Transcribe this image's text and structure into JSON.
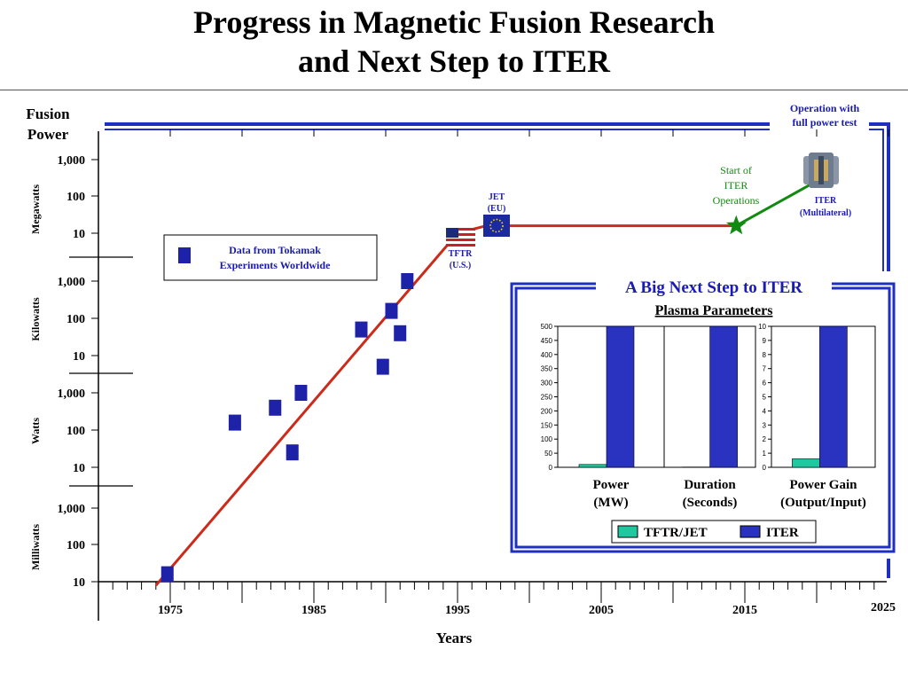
{
  "title_line1": "Progress in Magnetic Fusion Research",
  "title_line2": "and Next Step to ITER",
  "colors": {
    "frame_blue": "#1f2fbf",
    "marker_blue": "#1e22a8",
    "trend_red": "#cc2a1a",
    "iter_green": "#108a10",
    "bar_teal": "#20c8a0",
    "label_blue": "#1a1ab4"
  },
  "chart_data": [
    {
      "type": "scatter",
      "ylabel_line1": "Fusion",
      "ylabel_line2": "Power",
      "xlabel": "Years",
      "x_ticks": [
        "1975",
        "1985",
        "1995",
        "2005",
        "2015",
        "2025"
      ],
      "xlim": [
        1970,
        2025
      ],
      "scale": "log, stacked decades",
      "units": [
        {
          "name": "Milliwatts",
          "ticks": [
            "10",
            "100",
            "1,000"
          ]
        },
        {
          "name": "Watts",
          "ticks": [
            "10",
            "100",
            "1,000"
          ]
        },
        {
          "name": "Kilowatts",
          "ticks": [
            "10",
            "100",
            "1,000"
          ]
        },
        {
          "name": "Megawatts",
          "ticks": [
            "10",
            "100",
            "1,000"
          ]
        }
      ],
      "points_log10_watts": [
        {
          "year": 1974.8,
          "log10_watts": -1.8
        },
        {
          "year": 1979.5,
          "log10_watts": 2.2
        },
        {
          "year": 1982.3,
          "log10_watts": 2.6
        },
        {
          "year": 1983.5,
          "log10_watts": 1.4
        },
        {
          "year": 1984.1,
          "log10_watts": 3.0
        },
        {
          "year": 1988.3,
          "log10_watts": 4.7
        },
        {
          "year": 1989.8,
          "log10_watts": 3.7
        },
        {
          "year": 1990.4,
          "log10_watts": 5.2
        },
        {
          "year": 1991.0,
          "log10_watts": 4.6
        },
        {
          "year": 1991.5,
          "log10_watts": 6.0
        }
      ],
      "trend_line_log10_watts": [
        {
          "year": 1974.0,
          "log10_watts": -2.1
        },
        {
          "year": 1995.0,
          "log10_watts": 7.0
        },
        {
          "year": 1997.0,
          "log10_watts": 7.2
        },
        {
          "year": 2014.4,
          "log10_watts": 7.2
        }
      ],
      "iter_line_log10_watts": [
        {
          "year": 2014.4,
          "log10_watts": 7.2
        },
        {
          "year": 2019.5,
          "log10_watts": 8.3
        }
      ],
      "legend_line1": "Data from Tokamak",
      "legend_line2": "Experiments Worldwide",
      "annotations": {
        "jet_line1": "JET",
        "jet_line2": "(EU)",
        "tftr_line1": "TFTR",
        "tftr_line2": "(U.S.)",
        "start_line1": "Start of",
        "start_line2": "ITER",
        "start_line3": "Operations",
        "iter_line1": "ITER",
        "iter_line2": "(Multilateral)",
        "op_line1": "Operation with",
        "op_line2": "full power test"
      }
    },
    {
      "type": "bar",
      "title": "A Big Next Step to ITER",
      "subtitle": "Plasma Parameters",
      "groups": [
        {
          "label_line1": "Power",
          "label_line2": "(MW)",
          "ylim": [
            0,
            500
          ],
          "yticks": [
            0,
            50,
            100,
            150,
            200,
            250,
            300,
            350,
            400,
            450,
            500
          ],
          "values": [
            10,
            500
          ]
        },
        {
          "label_line1": "Duration",
          "label_line2": "(Seconds)",
          "ylim": [
            0,
            500
          ],
          "yticks": [],
          "values": [
            1,
            500
          ]
        },
        {
          "label_line1": "Power Gain",
          "label_line2": "(Output/Input)",
          "ylim": [
            0,
            10
          ],
          "yticks": [
            0,
            1,
            2,
            3,
            4,
            5,
            6,
            7,
            8,
            9,
            10
          ],
          "values": [
            0.6,
            10
          ]
        }
      ],
      "series": [
        {
          "name": "TFTR/JET"
        },
        {
          "name": "ITER"
        }
      ]
    }
  ]
}
